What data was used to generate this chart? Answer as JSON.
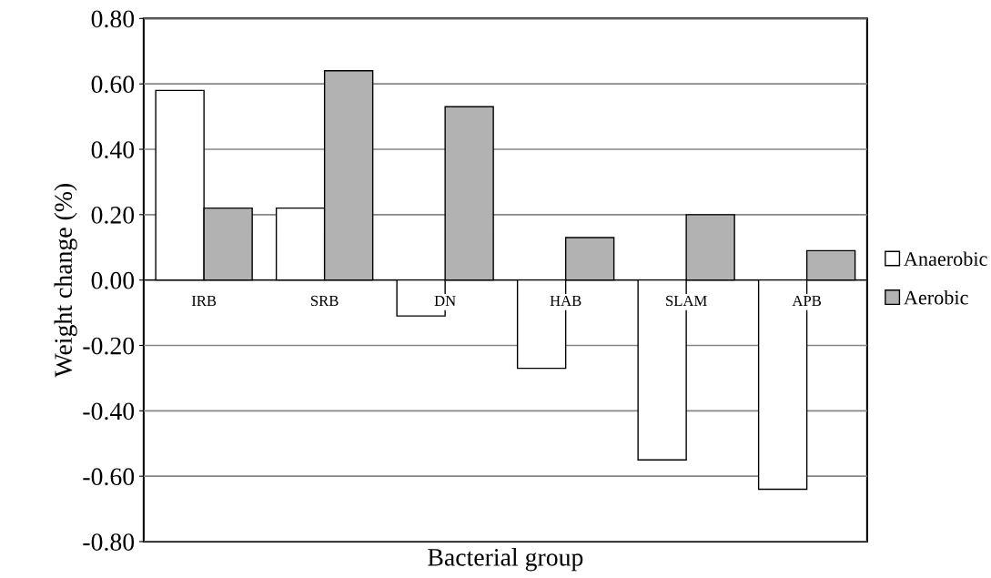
{
  "chart_data": {
    "type": "bar",
    "xlabel": "Bacterial group",
    "ylabel": "Weight change (%)",
    "categories": [
      "IRB",
      "SRB",
      "DN",
      "HAB",
      "SLAM",
      "APB"
    ],
    "series": [
      {
        "name": "Anaerobic",
        "color": "#ffffff",
        "values": [
          0.58,
          0.22,
          -0.11,
          -0.27,
          -0.55,
          -0.64
        ]
      },
      {
        "name": "Aerobic",
        "color": "#b2b2b2",
        "values": [
          0.22,
          0.64,
          0.53,
          0.13,
          0.2,
          0.09
        ]
      }
    ],
    "ylim": [
      -0.8,
      0.8
    ],
    "yticks": [
      {
        "value": -0.8,
        "label": "-0.80"
      },
      {
        "value": -0.6,
        "label": "-0.60"
      },
      {
        "value": -0.4,
        "label": "-0.40"
      },
      {
        "value": -0.2,
        "label": "-0.20"
      },
      {
        "value": 0,
        "label": "0.00"
      },
      {
        "value": 0.2,
        "label": "0.20"
      },
      {
        "value": 0.4,
        "label": "0.40"
      },
      {
        "value": 0.6,
        "label": "0.60"
      },
      {
        "value": 0.8,
        "label": "0.80"
      }
    ],
    "grid": "y",
    "legend": "right"
  }
}
